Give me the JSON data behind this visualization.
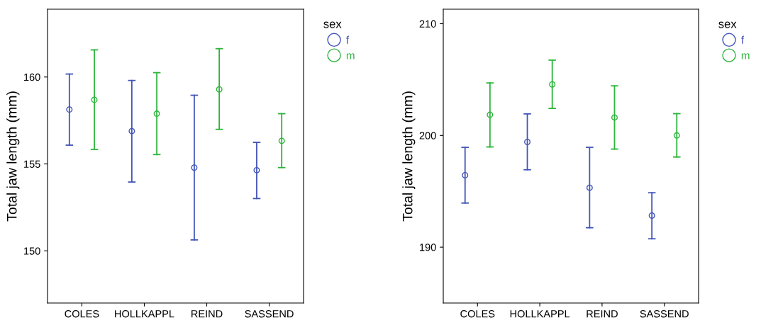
{
  "chart_data": [
    {
      "type": "scatter",
      "ylabel": "Total jaw length (mm)",
      "legend_title": "sex",
      "legend": "top right",
      "marker": "circle",
      "grid": false,
      "categories": [
        "COLES",
        "HOLLKAPPL",
        "REIND",
        "SASSEND"
      ],
      "ylim": [
        147,
        163.9
      ],
      "yticks": [
        150,
        155,
        160
      ],
      "series": [
        {
          "name": "f",
          "color": "#4256b8",
          "values": [
            158.13,
            156.89,
            154.79,
            154.64
          ],
          "errors": [
            [
              156.08,
              160.17
            ],
            [
              153.96,
              159.8
            ],
            [
              150.63,
              158.95
            ],
            [
              153.01,
              156.24
            ]
          ]
        },
        {
          "name": "m",
          "color": "#2eb53c",
          "values": [
            158.69,
            157.89,
            159.29,
            156.33
          ],
          "errors": [
            [
              155.83,
              161.56
            ],
            [
              155.54,
              160.25
            ],
            [
              156.99,
              161.63
            ],
            [
              154.79,
              157.89
            ]
          ]
        }
      ]
    },
    {
      "type": "scatter",
      "ylabel": "Total jaw length (mm)",
      "legend_title": "sex",
      "legend": "top right",
      "marker": "circle",
      "grid": false,
      "categories": [
        "COLES",
        "HOLLKAPPL",
        "REIND",
        "SASSEND"
      ],
      "ylim": [
        185,
        211.3
      ],
      "yticks": [
        190,
        200,
        210
      ],
      "series": [
        {
          "name": "f",
          "color": "#4256b8",
          "values": [
            196.44,
            199.42,
            195.32,
            192.83
          ],
          "errors": [
            [
              193.95,
              198.93
            ],
            [
              196.93,
              201.93
            ],
            [
              191.74,
              198.93
            ],
            [
              190.75,
              194.87
            ]
          ]
        },
        {
          "name": "m",
          "color": "#2eb53c",
          "values": [
            201.85,
            204.57,
            201.61,
            200.0
          ],
          "errors": [
            [
              198.97,
              204.7
            ],
            [
              202.42,
              206.74
            ],
            [
              198.78,
              204.44
            ],
            [
              198.07,
              201.95
            ]
          ]
        }
      ]
    }
  ]
}
